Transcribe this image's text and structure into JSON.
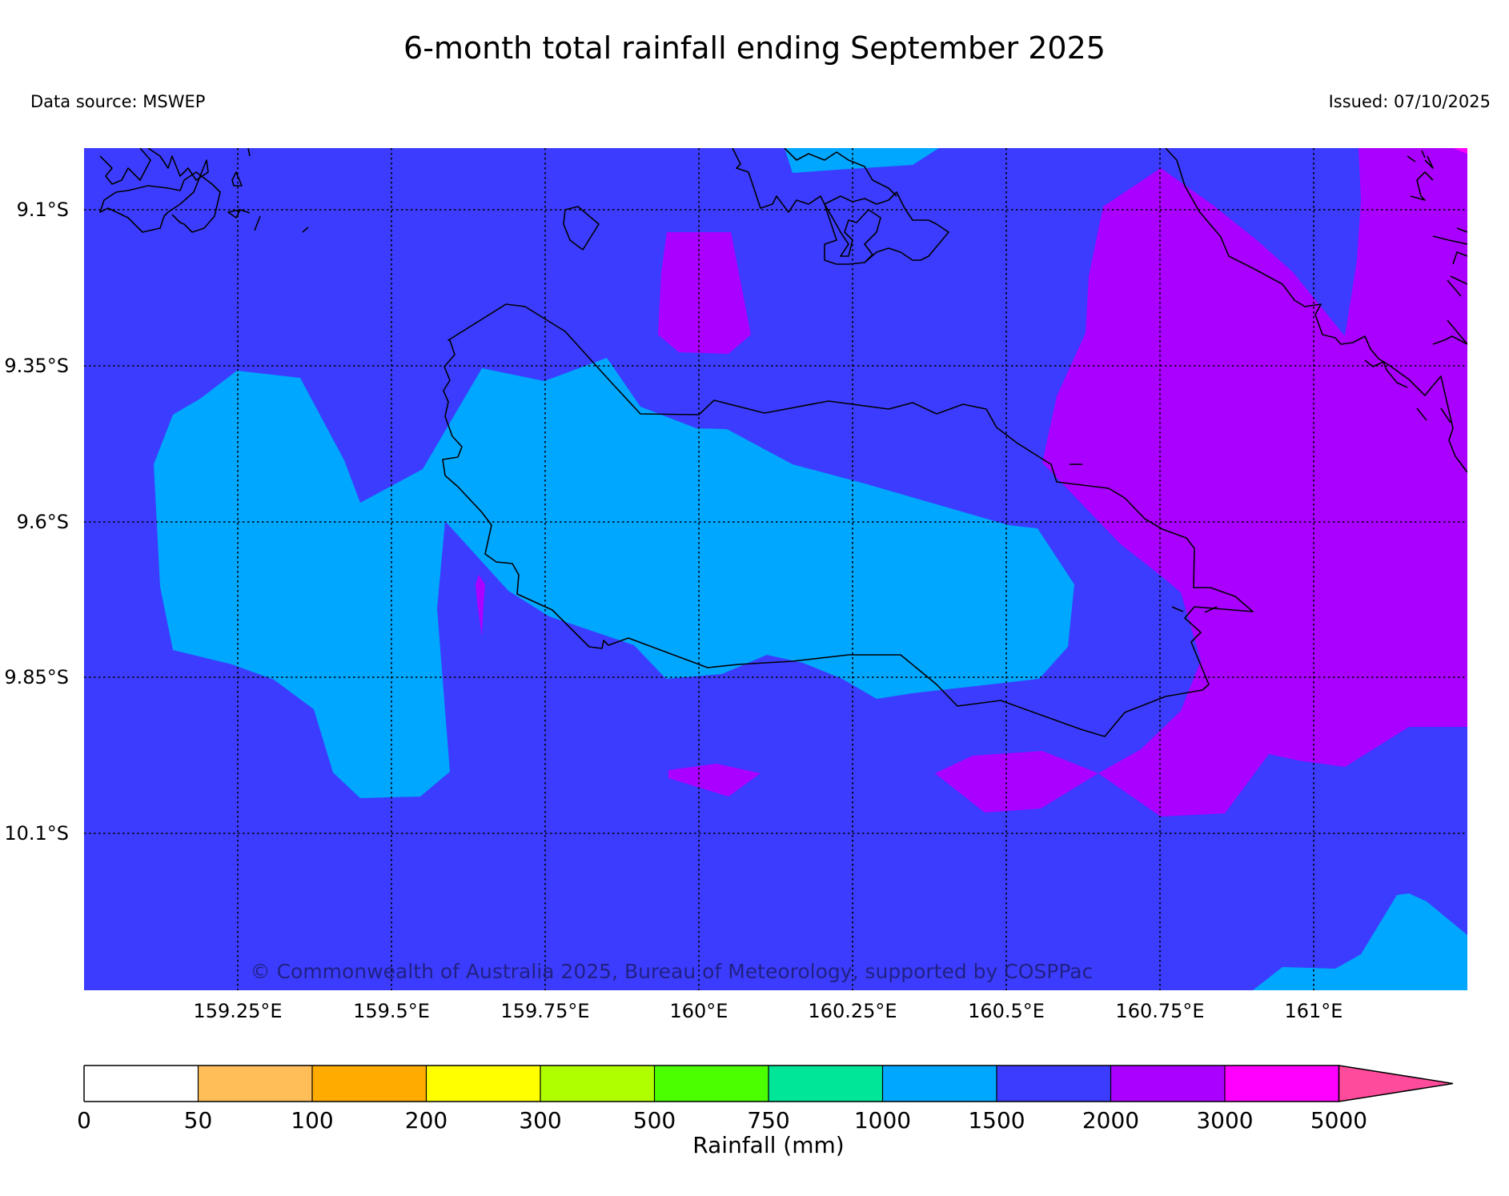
{
  "header": {
    "title": "6-month total rainfall ending September 2025",
    "source": "Data source: MSWEP",
    "issued": "Issued: 07/10/2025"
  },
  "map": {
    "copyright": "© Commonwealth of Australia 2025, Bureau of Meteorology, supported by COSPPac",
    "lon_range": [
      159.0,
      161.25
    ],
    "lat_range": [
      -9.0,
      -10.35
    ],
    "background_class": "1500-2000",
    "lon_ticks": [
      {
        "value": 159.25,
        "label": "159.25°E"
      },
      {
        "value": 159.5,
        "label": "159.5°E"
      },
      {
        "value": 159.75,
        "label": "159.75°E"
      },
      {
        "value": 160.0,
        "label": "160°E"
      },
      {
        "value": 160.25,
        "label": "160.25°E"
      },
      {
        "value": 160.5,
        "label": "160.5°E"
      },
      {
        "value": 160.75,
        "label": "160.75°E"
      },
      {
        "value": 161.0,
        "label": "161°E"
      }
    ],
    "lat_ticks": [
      {
        "value": -9.1,
        "label": "9.1°S"
      },
      {
        "value": -9.35,
        "label": "9.35°S"
      },
      {
        "value": -9.6,
        "label": "9.6°S"
      },
      {
        "value": -9.85,
        "label": "9.85°S"
      },
      {
        "value": -10.1,
        "label": "10.1°S"
      }
    ]
  },
  "colorbar": {
    "label": "Rainfall (mm)",
    "ticks": [
      "0",
      "50",
      "100",
      "200",
      "300",
      "500",
      "750",
      "1000",
      "1500",
      "2000",
      "3000",
      "5000"
    ],
    "colors": [
      "#ffffff",
      "#ffbe58",
      "#ffab00",
      "#ffff00",
      "#b0ff00",
      "#4cff00",
      "#00e699",
      "#00a7ff",
      "#3c3cff",
      "#aa00ff",
      "#ff00ff"
    ],
    "extend_color": "#ff4b9c"
  },
  "colors": {
    "c1000_1500": "#00a7ff",
    "c1500_2000": "#3c3cff",
    "c2000_3000": "#aa00ff",
    "c3000_5000": "#ff00ff"
  }
}
